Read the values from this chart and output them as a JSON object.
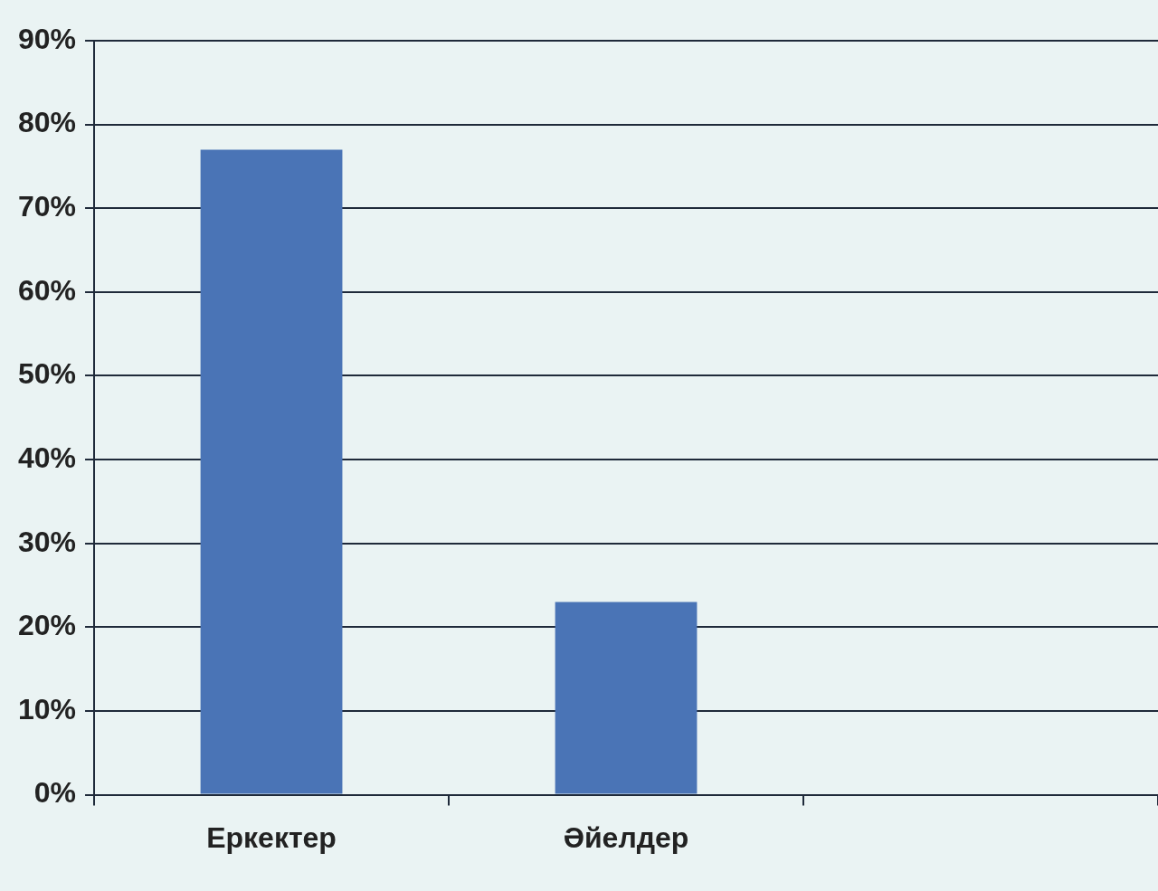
{
  "chart_data": {
    "type": "bar",
    "categories": [
      "Еркектер",
      "Әйелдер",
      null
    ],
    "values": [
      77,
      23,
      null
    ],
    "color": "#4a74b6",
    "ylim": [
      0,
      90
    ],
    "yticks": [
      {
        "value": 0,
        "label": "0%"
      },
      {
        "value": 10,
        "label": "10%"
      },
      {
        "value": 20,
        "label": "20%"
      },
      {
        "value": 30,
        "label": "30%"
      },
      {
        "value": 40,
        "label": "40%"
      },
      {
        "value": 50,
        "label": "50%"
      },
      {
        "value": 60,
        "label": "60%"
      },
      {
        "value": 70,
        "label": "70%"
      },
      {
        "value": 80,
        "label": "80%"
      },
      {
        "value": 90,
        "label": "90%"
      }
    ],
    "grid": "y",
    "legend": false
  }
}
